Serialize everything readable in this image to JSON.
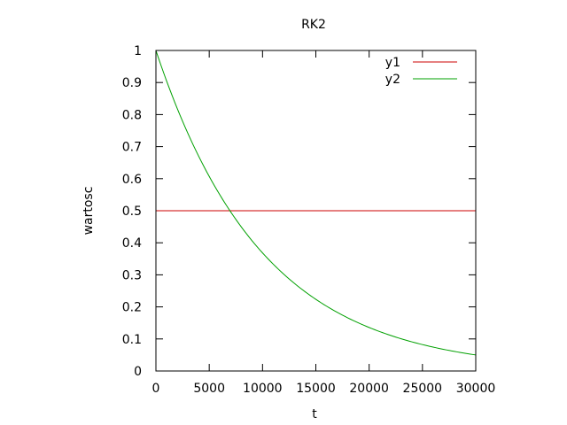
{
  "chart_data": {
    "type": "line",
    "title": "RK2",
    "xlabel": "t",
    "ylabel": "wartosc",
    "xlim": [
      0,
      30000
    ],
    "ylim": [
      0,
      1
    ],
    "x_ticks": [
      0,
      5000,
      10000,
      15000,
      20000,
      25000,
      30000
    ],
    "x_tick_labels": [
      "0",
      "5000",
      "10000",
      "15000",
      "20000",
      "25000",
      "30000"
    ],
    "y_ticks": [
      0,
      0.1,
      0.2,
      0.3,
      0.4,
      0.5,
      0.6,
      0.7,
      0.8,
      0.9,
      1
    ],
    "y_tick_labels": [
      "0",
      "0.1",
      "0.2",
      "0.3",
      "0.4",
      "0.5",
      "0.6",
      "0.7",
      "0.8",
      "0.9",
      "1"
    ],
    "grid": false,
    "legend_position": "top-right",
    "series": [
      {
        "name": "y1",
        "color": "#cc0000",
        "x": [
          0,
          5000,
          10000,
          15000,
          20000,
          25000,
          30000
        ],
        "y": [
          0.5,
          0.5,
          0.5,
          0.5,
          0.5,
          0.5,
          0.5
        ]
      },
      {
        "name": "y2",
        "color": "#00a000",
        "x": [
          0,
          2500,
          5000,
          7500,
          10000,
          12500,
          15000,
          17500,
          20000,
          22500,
          25000,
          27500,
          30000
        ],
        "y": [
          1.0,
          0.779,
          0.607,
          0.472,
          0.368,
          0.287,
          0.223,
          0.174,
          0.135,
          0.105,
          0.082,
          0.064,
          0.05
        ]
      }
    ]
  }
}
